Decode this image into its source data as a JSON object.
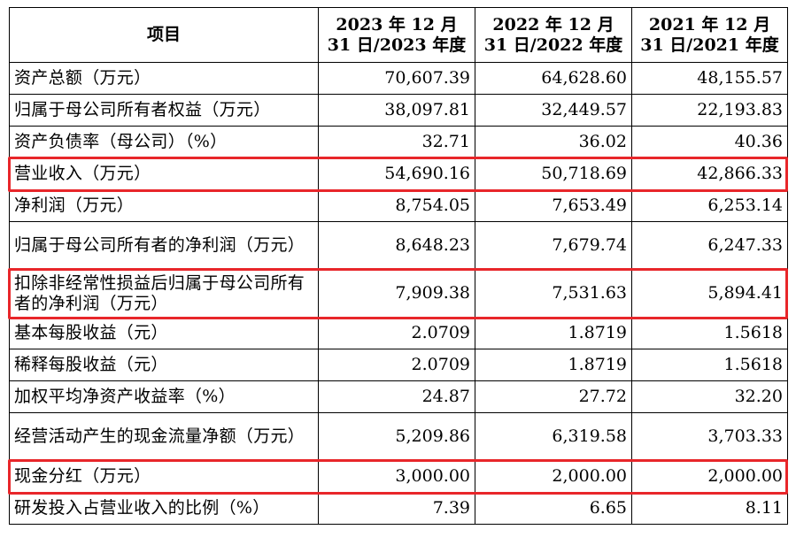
{
  "table": {
    "headers": [
      "项目",
      "2023 年 12 月 31 日/2023 年度",
      "2022 年 12 月 31 日/2022 年度",
      "2021 年 12 月 31 日/2021 年度"
    ],
    "rows": [
      {
        "label": "资产总额（万元）",
        "values": [
          "70,607.39",
          "64,628.60",
          "48,155.57"
        ]
      },
      {
        "label": "归属于母公司所有者权益（万元）",
        "values": [
          "38,097.81",
          "32,449.57",
          "22,193.83"
        ]
      },
      {
        "label": "资产负债率（母公司）（%）",
        "values": [
          "32.71",
          "36.02",
          "40.36"
        ]
      },
      {
        "label": "营业收入（万元）",
        "values": [
          "54,690.16",
          "50,718.69",
          "42,866.33"
        ]
      },
      {
        "label": "净利润（万元）",
        "values": [
          "8,754.05",
          "7,653.49",
          "6,253.14"
        ]
      },
      {
        "label": "归属于母公司所有者的净利润（万元）",
        "values": [
          "8,648.23",
          "7,679.74",
          "6,247.33"
        ]
      },
      {
        "label": "扣除非经常性损益后归属于母公司所有者的净利润（万元）",
        "values": [
          "7,909.38",
          "7,531.63",
          "5,894.41"
        ]
      },
      {
        "label": "基本每股收益（元）",
        "values": [
          "2.0709",
          "1.8719",
          "1.5618"
        ]
      },
      {
        "label": "稀释每股收益（元）",
        "values": [
          "2.0709",
          "1.8719",
          "1.5618"
        ]
      },
      {
        "label": "加权平均净资产收益率（%）",
        "values": [
          "24.87",
          "27.72",
          "32.20"
        ]
      },
      {
        "label": "经营活动产生的现金流量净额（万元）",
        "values": [
          "5,209.86",
          "6,319.58",
          "3,703.33"
        ]
      },
      {
        "label": "现金分红（万元）",
        "values": [
          "3,000.00",
          "2,000.00",
          "2,000.00"
        ]
      },
      {
        "label": "研发投入占营业收入的比例（%）",
        "values": [
          "7.39",
          "6.65",
          "8.11"
        ]
      }
    ]
  },
  "highlight_color": "#e8262a"
}
